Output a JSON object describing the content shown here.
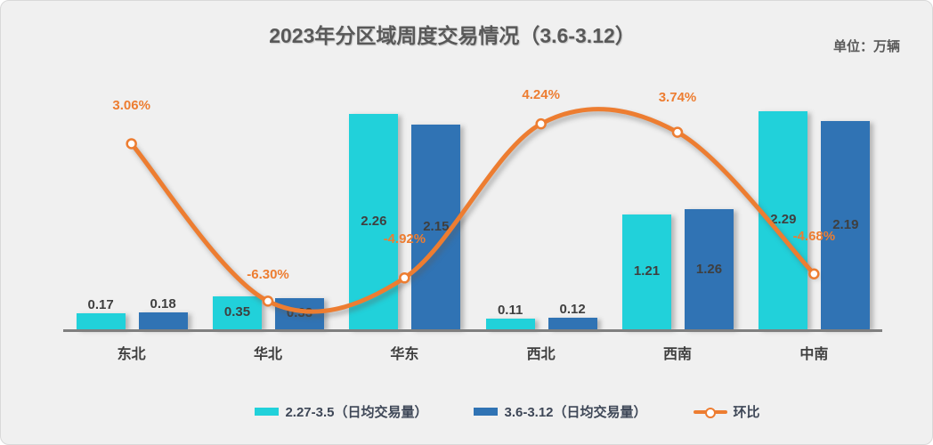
{
  "header": {
    "title": "2023年分区域周度交易情况（3.6-3.12）",
    "unit_label": "单位：万辆"
  },
  "colors": {
    "series1": "#21d1da",
    "series2": "#3073b4",
    "line": "#ed7d31",
    "axis": "#7f7f7f",
    "background": "#f0f0f0",
    "title_text": "#595959",
    "value_label_text": "#3f3f3f",
    "legend_text": "#3e4757"
  },
  "chart_data": {
    "type": "bar",
    "title": "2023年分区域周度交易情况（3.6-3.12）",
    "unit": "万辆",
    "categories": [
      "东北",
      "华北",
      "华东",
      "西北",
      "西南",
      "中南"
    ],
    "series": [
      {
        "name": "2.27-3.5（日均交易量）",
        "type": "bar",
        "color": "#21d1da",
        "values": [
          0.17,
          0.35,
          2.26,
          0.11,
          1.21,
          2.29
        ]
      },
      {
        "name": "3.6-3.12（日均交易量）",
        "type": "bar",
        "color": "#3073b4",
        "values": [
          0.18,
          0.33,
          2.15,
          0.12,
          1.26,
          2.19
        ]
      },
      {
        "name": "环比",
        "type": "line",
        "color": "#ed7d31",
        "values": [
          3.06,
          -6.3,
          -4.92,
          4.24,
          3.74,
          -4.68
        ],
        "labels": [
          "3.06%",
          "-6.30%",
          "-4.92%",
          "4.24%",
          "3.74%",
          "-4.68%"
        ],
        "label_dy": [
          -42,
          -29,
          -43,
          -32,
          -39,
          -42
        ]
      }
    ],
    "xlabel": "",
    "ylabel": "",
    "value_axis_visible": false,
    "grid": false,
    "legend_position": "bottom",
    "line_axis_unit": "percent"
  }
}
